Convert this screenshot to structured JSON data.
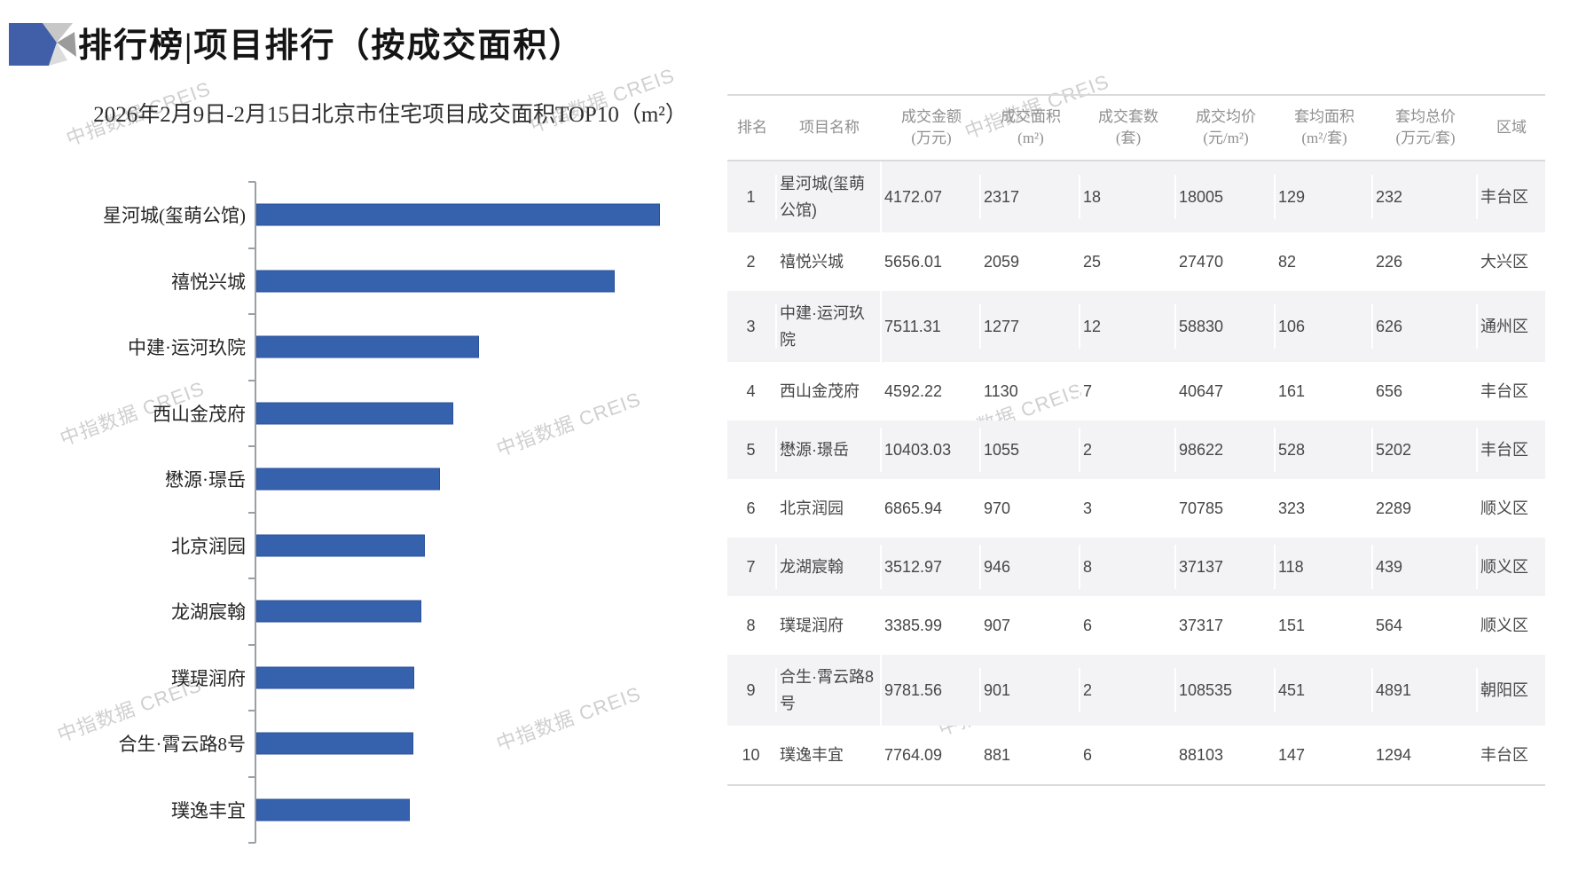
{
  "header": {
    "title": "排行榜|项目排行（按成交面积）"
  },
  "watermark": {
    "text": "中指数据 CREIS"
  },
  "chart_data": {
    "type": "bar",
    "orientation": "horizontal",
    "title": "2026年2月9日-2月15日北京市住宅项目成交面积TOP10（m²）",
    "categories": [
      "星河城(玺萌公馆)",
      "禧悦兴城",
      "中建·运河玖院",
      "西山金茂府",
      "懋源·璟岳",
      "北京润园",
      "龙湖宸翰",
      "璞瑅润府",
      "合生·霄云路8号",
      "璞逸丰宜"
    ],
    "values": [
      2317,
      2059,
      1277,
      1130,
      1055,
      970,
      946,
      907,
      901,
      881
    ],
    "xlabel": "成交面积",
    "ylabel": "项目名称",
    "unit": "m²",
    "xlim": [
      0,
      2450
    ],
    "grid": false,
    "legend": "none",
    "bar_color": "#3561ad"
  },
  "table": {
    "columns": [
      {
        "label": "排名",
        "unit": ""
      },
      {
        "label": "项目名称",
        "unit": ""
      },
      {
        "label": "成交金额",
        "unit": "(万元)"
      },
      {
        "label": "成交面积",
        "unit": "(m²)"
      },
      {
        "label": "成交套数",
        "unit": "(套)"
      },
      {
        "label": "成交均价",
        "unit": "(元/m²)"
      },
      {
        "label": "套均面积",
        "unit": "(m²/套)"
      },
      {
        "label": "套均总价",
        "unit": "(万元/套)"
      },
      {
        "label": "区域",
        "unit": ""
      }
    ],
    "rows": [
      [
        "1",
        "星河城(玺萌公馆)",
        "4172.07",
        "2317",
        "18",
        "18005",
        "129",
        "232",
        "丰台区"
      ],
      [
        "2",
        "禧悦兴城",
        "5656.01",
        "2059",
        "25",
        "27470",
        "82",
        "226",
        "大兴区"
      ],
      [
        "3",
        "中建·运河玖院",
        "7511.31",
        "1277",
        "12",
        "58830",
        "106",
        "626",
        "通州区"
      ],
      [
        "4",
        "西山金茂府",
        "4592.22",
        "1130",
        "7",
        "40647",
        "161",
        "656",
        "丰台区"
      ],
      [
        "5",
        "懋源·璟岳",
        "10403.03",
        "1055",
        "2",
        "98622",
        "528",
        "5202",
        "丰台区"
      ],
      [
        "6",
        "北京润园",
        "6865.94",
        "970",
        "3",
        "70785",
        "323",
        "2289",
        "顺义区"
      ],
      [
        "7",
        "龙湖宸翰",
        "3512.97",
        "946",
        "8",
        "37137",
        "118",
        "439",
        "顺义区"
      ],
      [
        "8",
        "璞瑅润府",
        "3385.99",
        "907",
        "6",
        "37317",
        "151",
        "564",
        "顺义区"
      ],
      [
        "9",
        "合生·霄云路8号",
        "9781.56",
        "901",
        "2",
        "108535",
        "451",
        "4891",
        "朝阳区"
      ],
      [
        "10",
        "璞逸丰宜",
        "7764.09",
        "881",
        "6",
        "88103",
        "147",
        "1294",
        "丰台区"
      ]
    ]
  },
  "colors": {
    "bar_fill": "#3561ad",
    "bar_border": "#2a519b",
    "alt_row_bg": "#f3f3f6",
    "header_text": "#8f8f8f",
    "axis": "#9aa0a6",
    "logo_blue": "#415fa9",
    "logo_light_gray": "#c7c7c7",
    "logo_mid_gray": "#9b9b9b",
    "logo_pale_gray": "#dcdcdc"
  }
}
